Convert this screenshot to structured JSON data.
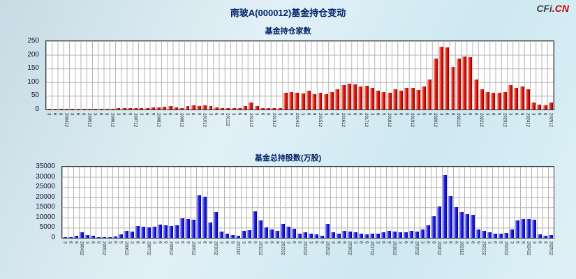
{
  "header": {
    "title": "南玻A(000012)基金持仓变动",
    "logo": {
      "cfi": "CFi",
      "cn": ".CN"
    }
  },
  "chart_data": [
    {
      "type": "bar",
      "title": "基金持仓家数",
      "xlabel": "",
      "ylabel": "",
      "ylim": [
        0,
        250
      ],
      "yticks": [
        0,
        50,
        100,
        150,
        200,
        250
      ],
      "grid": true,
      "color": "red",
      "bar_color_hex": "#dd1100",
      "categories": [
        "3",
        "6",
        "9",
        "200412",
        "3",
        "6",
        "9",
        "200512",
        "3",
        "6",
        "9",
        "200612",
        "3",
        "6",
        "9",
        "200712",
        "3",
        "6",
        "9",
        "200812",
        "3",
        "6",
        "9",
        "200912",
        "3",
        "6",
        "9",
        "201012",
        "3",
        "6",
        "9",
        "201112",
        "3",
        "6",
        "9",
        "201212",
        "3",
        "6",
        "9",
        "201312",
        "3",
        "6",
        "9",
        "201412",
        "3",
        "6",
        "9",
        "201512",
        "3",
        "6",
        "9",
        "201612",
        "3",
        "6",
        "9",
        "201712",
        "3",
        "6",
        "9",
        "201812",
        "3",
        "6",
        "9",
        "201912",
        "3",
        "6",
        "9",
        "202012",
        "3",
        "6",
        "9",
        "202112",
        "3",
        "6",
        "9",
        "202212",
        "3",
        "6",
        "9",
        "202312",
        "3",
        "6",
        "9",
        "202412",
        "3",
        "6",
        "9",
        "202512"
      ],
      "values": [
        2,
        2,
        3,
        2,
        2,
        2,
        2,
        2,
        2,
        2,
        2,
        3,
        4,
        4,
        5,
        5,
        5,
        6,
        8,
        8,
        10,
        12,
        8,
        6,
        14,
        16,
        12,
        15,
        12,
        8,
        5,
        4,
        4,
        6,
        12,
        25,
        12,
        6,
        4,
        4,
        5,
        60,
        65,
        60,
        58,
        70,
        55,
        60,
        55,
        65,
        75,
        90,
        95,
        92,
        85,
        88,
        80,
        70,
        65,
        60,
        75,
        70,
        78,
        80,
        72,
        85,
        110,
        185,
        230,
        228,
        155,
        185,
        195,
        192,
        110,
        75,
        65,
        62,
        60,
        65,
        90,
        78,
        85,
        75,
        25,
        18,
        15,
        25
      ]
    },
    {
      "type": "bar",
      "title": "基金总持股数(万股)",
      "xlabel": "",
      "ylabel": "",
      "ylim": [
        0,
        35000
      ],
      "yticks": [
        0,
        5000,
        10000,
        15000,
        20000,
        25000,
        30000,
        35000
      ],
      "grid": true,
      "color": "blue",
      "bar_color_hex": "#2222dd",
      "categories": [
        "3",
        "6",
        "9",
        "200412",
        "3",
        "6",
        "9",
        "200512",
        "3",
        "6",
        "9",
        "200612",
        "3",
        "6",
        "9",
        "200712",
        "3",
        "6",
        "9",
        "200812",
        "3",
        "6",
        "9",
        "200912",
        "3",
        "6",
        "9",
        "201012",
        "3",
        "6",
        "9",
        "201112",
        "3",
        "6",
        "9",
        "201212",
        "3",
        "6",
        "9",
        "201312",
        "3",
        "6",
        "9",
        "201412",
        "3",
        "6",
        "9",
        "201512",
        "3",
        "6",
        "9",
        "201612",
        "3",
        "6",
        "9",
        "201712",
        "3",
        "6",
        "9",
        "201812",
        "3",
        "6",
        "9",
        "201912",
        "3",
        "6",
        "9",
        "202012",
        "3",
        "6",
        "9",
        "202112",
        "3",
        "6",
        "9",
        "202212",
        "3",
        "6",
        "9",
        "202312",
        "3",
        "6",
        "9",
        "202412",
        "3",
        "6",
        "9",
        "202512"
      ],
      "values": [
        300,
        500,
        900,
        2800,
        1300,
        900,
        500,
        400,
        500,
        700,
        1600,
        3500,
        3200,
        6000,
        5600,
        5200,
        5600,
        6500,
        6200,
        5800,
        6200,
        9500,
        9200,
        8800,
        21000,
        20200,
        7500,
        12800,
        3200,
        2200,
        1500,
        1000,
        3600,
        3800,
        13000,
        8600,
        5200,
        4200,
        3600,
        7000,
        5600,
        4600,
        2200,
        2600,
        2200,
        1600,
        1200,
        6800,
        2600,
        2200,
        3600,
        3200,
        2600,
        2200,
        1600,
        1900,
        2100,
        2600,
        3600,
        3100,
        2900,
        2600,
        3300,
        3100,
        4200,
        6200,
        10500,
        15500,
        31000,
        20500,
        15200,
        12600,
        11600,
        11200,
        4200,
        3600,
        2600,
        2200,
        1900,
        2300,
        4200,
        8600,
        9200,
        9200,
        8800,
        1600,
        1200,
        1500
      ]
    }
  ]
}
